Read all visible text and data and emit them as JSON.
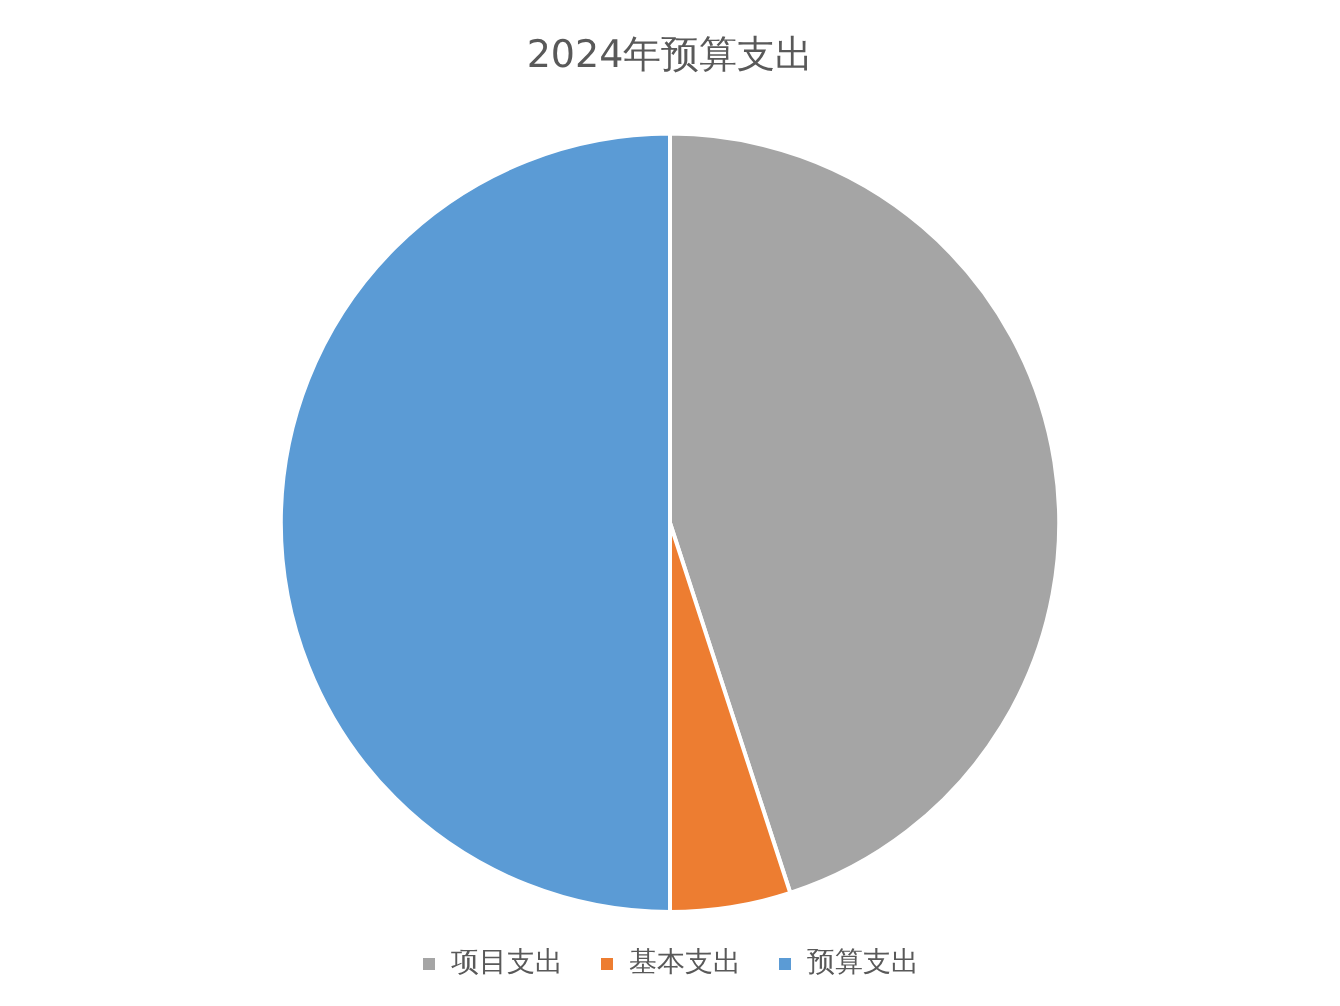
{
  "chart_data": {
    "type": "pie",
    "title": "2024年预算支出",
    "categories": [
      "项目支出",
      "基本支出",
      "预算支出"
    ],
    "values": [
      45,
      5,
      50
    ],
    "colors": [
      "#a5a5a5",
      "#ed7d31",
      "#5b9bd5"
    ],
    "legend": "bottom"
  }
}
